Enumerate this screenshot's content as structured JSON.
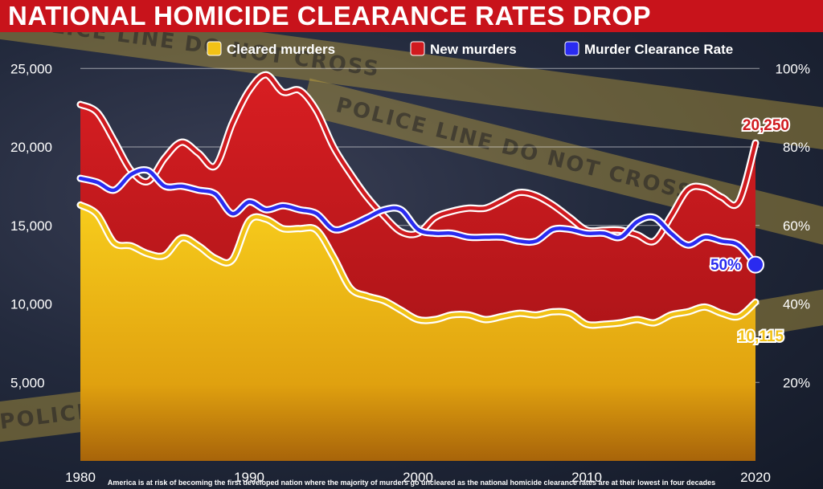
{
  "title": "NATIONAL HOMICIDE CLEARANCE RATES DROP",
  "caption": "America is at risk of becoming the first developed nation where the majority of murders go uncleared as the national homicide clearance rates are at their lowest in four decades",
  "background_tape_text": "POLICE LINE DO NOT CROSS",
  "colors": {
    "title_bg": "#c8131b",
    "cleared": "#f2c216",
    "new": "#d01a1f",
    "rate": "#2a2bf0"
  },
  "chart_data": {
    "type": "area",
    "x": [
      1980,
      1981,
      1982,
      1983,
      1984,
      1985,
      1986,
      1987,
      1988,
      1989,
      1990,
      1991,
      1992,
      1993,
      1994,
      1995,
      1996,
      1997,
      1998,
      1999,
      2000,
      2001,
      2002,
      2003,
      2004,
      2005,
      2006,
      2007,
      2008,
      2009,
      2010,
      2011,
      2012,
      2013,
      2014,
      2015,
      2016,
      2017,
      2018,
      2019,
      2020
    ],
    "x_ticks": [
      "1980",
      "1990",
      "2000",
      "2010",
      "2020"
    ],
    "y_left": {
      "ticks": [
        "5,000",
        "10,000",
        "15,000",
        "20,000",
        "25,000"
      ],
      "range": [
        0,
        25000
      ]
    },
    "y_right": {
      "ticks": [
        "20%",
        "40%",
        "60%",
        "80%",
        "100%"
      ],
      "range": [
        0,
        100
      ]
    },
    "legend_position": "top",
    "series": [
      {
        "name": "Cleared murders",
        "axis": "left",
        "values": [
          16300,
          15700,
          13900,
          13700,
          13200,
          13100,
          14200,
          13700,
          12900,
          12800,
          15300,
          15400,
          14800,
          14800,
          14700,
          13000,
          11000,
          10500,
          10200,
          9600,
          9000,
          9000,
          9300,
          9300,
          9000,
          9200,
          9400,
          9300,
          9500,
          9400,
          8700,
          8700,
          8800,
          9000,
          8800,
          9300,
          9500,
          9800,
          9400,
          9200,
          10115
        ],
        "end_label": "10,115"
      },
      {
        "name": "New murders",
        "axis": "left",
        "values": [
          22700,
          22200,
          20400,
          18500,
          17800,
          19300,
          20300,
          19600,
          18800,
          21500,
          23600,
          24600,
          23500,
          23600,
          22300,
          20000,
          18300,
          16800,
          15600,
          14600,
          14500,
          15500,
          15900,
          16100,
          16100,
          16600,
          17100,
          16900,
          16300,
          15500,
          14700,
          14700,
          14700,
          14400,
          14000,
          15600,
          17300,
          17400,
          16800,
          16500,
          20250
        ],
        "end_label": "20,250"
      },
      {
        "name": "Murder Clearance Rate",
        "axis": "right",
        "values": [
          72,
          71,
          69,
          73,
          74,
          70,
          70,
          69,
          68,
          63,
          66,
          64,
          65,
          64,
          63,
          59,
          60,
          62,
          64,
          64,
          59,
          58,
          58,
          57,
          57,
          57,
          56,
          56,
          59,
          59,
          58,
          58,
          57,
          61,
          62,
          58,
          55,
          57,
          56,
          55,
          50
        ],
        "end_label": "50%"
      }
    ]
  }
}
